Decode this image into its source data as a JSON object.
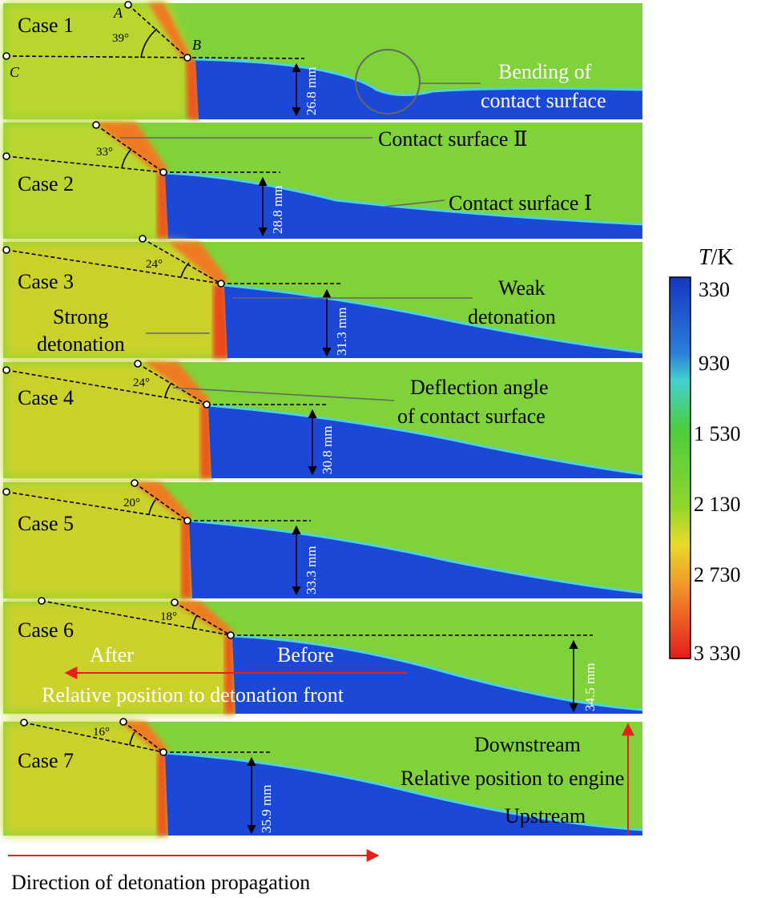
{
  "cases": [
    {
      "label": "Case 1",
      "angle": "39°",
      "height": "26.8 mm"
    },
    {
      "label": "Case 2",
      "angle": "33°",
      "height": "28.8 mm"
    },
    {
      "label": "Case 3",
      "angle": "24°",
      "height": "31.3 mm"
    },
    {
      "label": "Case 4",
      "angle": "24°",
      "height": "30.8 mm"
    },
    {
      "label": "Case 5",
      "angle": "20°",
      "height": "33.3 mm"
    },
    {
      "label": "Case 6",
      "angle": "18°",
      "height": "34.5 mm"
    },
    {
      "label": "Case 7",
      "angle": "16°",
      "height": "35.9 mm"
    }
  ],
  "points": {
    "a": "A",
    "b": "B",
    "c": "C"
  },
  "annotations": {
    "bending_1": "Bending of",
    "bending_2": "contact surface",
    "contact_2": "Contact surface Ⅱ",
    "contact_1": "Contact surface Ⅰ",
    "weak_1": "Weak",
    "weak_2": "detonation",
    "strong_1": "Strong",
    "strong_2": "detonation",
    "deflection_1": "Deflection angle",
    "deflection_2": "of contact surface",
    "after": "After",
    "before": "Before",
    "relative_front": "Relative position to detonation front",
    "downstream": "Downstream",
    "relative_engine": "Relative position to engine",
    "upstream": "Upstream",
    "propagation": "Direction of detonation propagation"
  },
  "colorbar": {
    "title_var": "T",
    "title_unit": "/K",
    "ticks": [
      "330",
      "930",
      "1 530",
      "2 130",
      "2 730",
      "3 330"
    ],
    "colors": [
      "#1a3fd6",
      "#3fd0d8",
      "#3ec93c",
      "#8fd82a",
      "#f0d22a",
      "#f0691a",
      "#e8201a"
    ]
  }
}
